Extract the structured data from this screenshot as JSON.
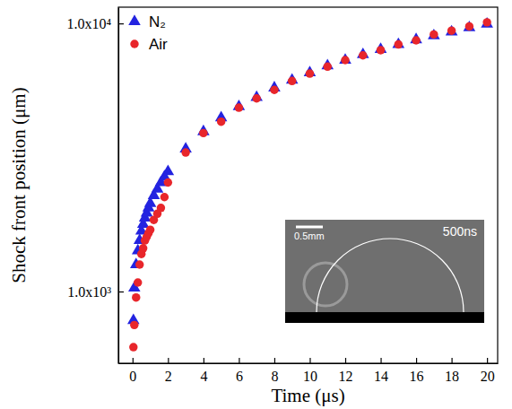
{
  "chart_data": {
    "type": "scatter",
    "x_label": "Time (μs)",
    "y_label": "Shock front position (μm)",
    "log": "y",
    "grid": false,
    "legend": "upper left",
    "xlim": [
      -0.8,
      20.6
    ],
    "xticks": [
      0,
      2,
      4,
      6,
      8,
      10,
      12,
      14,
      16,
      18,
      20
    ],
    "ylim": [
      540,
      11500
    ],
    "yticks": [
      {
        "value": 1000,
        "label": "1.0x10³"
      },
      {
        "value": 10000,
        "label": "1.0x10⁴"
      }
    ],
    "x": [
      0.05,
      0.1,
      0.2,
      0.3,
      0.4,
      0.5,
      0.6,
      0.7,
      0.8,
      0.9,
      1.0,
      1.2,
      1.4,
      1.6,
      1.8,
      2.0,
      3,
      4,
      5,
      6,
      7,
      8,
      9,
      10,
      11,
      12,
      13,
      14,
      15,
      16,
      17,
      18,
      19,
      20
    ],
    "series": [
      {
        "name": "N₂",
        "color": "#2323e0",
        "marker": "triangle",
        "values": [
          780,
          1030,
          1260,
          1420,
          1550,
          1680,
          1780,
          1880,
          1960,
          2050,
          2130,
          2280,
          2410,
          2550,
          2680,
          2800,
          3400,
          3950,
          4450,
          4900,
          5300,
          5750,
          6150,
          6550,
          6950,
          7300,
          7650,
          8000,
          8350,
          8700,
          9000,
          9300,
          9650,
          9950
        ]
      },
      {
        "name": "Air",
        "color": "#e8262b",
        "marker": "circle",
        "values": [
          620,
          750,
          950,
          1080,
          1260,
          1380,
          1450,
          1550,
          1600,
          1650,
          1700,
          1850,
          1950,
          2050,
          2250,
          2550,
          3300,
          3900,
          4300,
          4850,
          5250,
          5650,
          6100,
          6500,
          6900,
          7300,
          7600,
          7950,
          8350,
          8650,
          9100,
          9400,
          9750,
          10100
        ]
      }
    ],
    "annotations": [
      "0.5mm",
      "500ns"
    ]
  }
}
